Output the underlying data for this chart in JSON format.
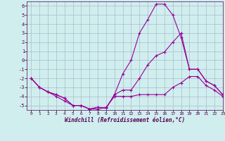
{
  "xlabel": "Windchill (Refroidissement éolien,°C)",
  "xlim": [
    -0.5,
    23
  ],
  "ylim": [
    -5.5,
    6.5
  ],
  "yticks": [
    -5,
    -4,
    -3,
    -2,
    -1,
    0,
    1,
    2,
    3,
    4,
    5,
    6
  ],
  "xticks": [
    0,
    1,
    2,
    3,
    4,
    5,
    6,
    7,
    8,
    9,
    10,
    11,
    12,
    13,
    14,
    15,
    16,
    17,
    18,
    19,
    20,
    21,
    22,
    23
  ],
  "background_color": "#d0eeee",
  "grid_color": "#aabbcc",
  "line_color": "#990099",
  "line1_y": [
    -2.0,
    -3.0,
    -3.5,
    -4.0,
    -4.5,
    -5.0,
    -5.0,
    -5.4,
    -5.4,
    -5.2,
    -4.0,
    -4.0,
    -4.0,
    -3.8,
    -3.8,
    -3.8,
    -3.8,
    -3.0,
    -2.5,
    -1.8,
    -1.8,
    -2.8,
    -3.3,
    -4.0
  ],
  "line2_y": [
    -2.0,
    -3.0,
    -3.5,
    -3.8,
    -4.2,
    -5.0,
    -5.0,
    -5.4,
    -5.2,
    -5.3,
    -3.8,
    -3.3,
    -3.3,
    -2.0,
    -0.5,
    0.5,
    0.9,
    2.0,
    3.0,
    -1.0,
    -1.0,
    -2.3,
    -2.8,
    -3.8
  ],
  "line3_y": [
    -2.0,
    -3.0,
    -3.5,
    -3.8,
    -4.2,
    -5.0,
    -5.0,
    -5.4,
    -5.2,
    -5.3,
    -3.8,
    -1.5,
    0.0,
    3.0,
    4.5,
    6.2,
    6.2,
    5.0,
    2.5,
    -1.0,
    -1.0,
    -2.3,
    -2.8,
    -3.8
  ]
}
